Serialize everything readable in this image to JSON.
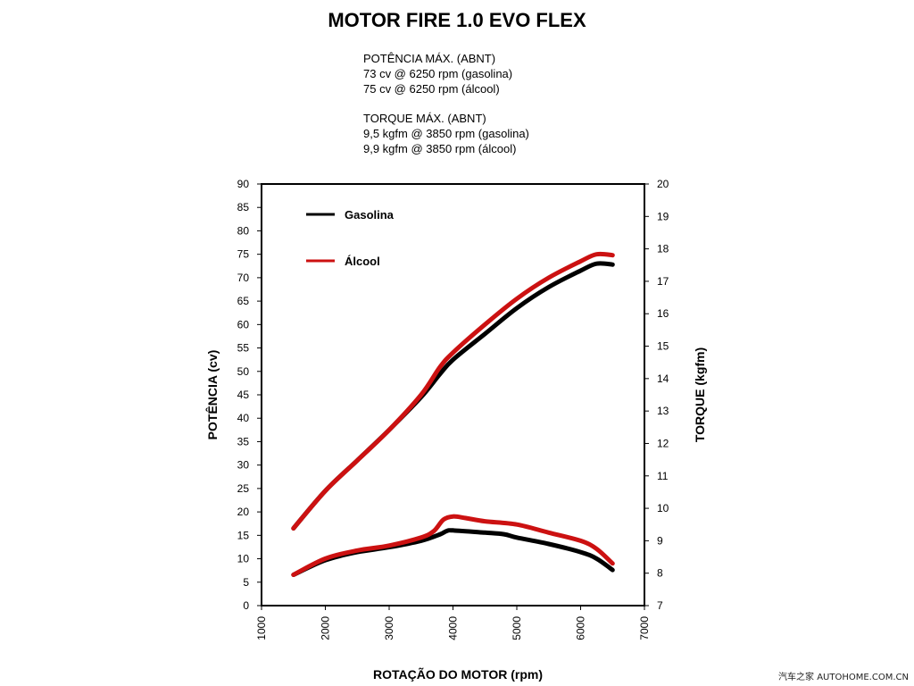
{
  "title": "MOTOR FIRE 1.0 EVO FLEX",
  "specs": {
    "power_heading": "POTÊNCIA MÁX. (ABNT)",
    "power_gas": "73 cv @ 6250 rpm (gasolina)",
    "power_alc": "75 cv @ 6250 rpm (álcool)",
    "torque_heading": "TORQUE MÁX. (ABNT)",
    "torque_gas": "9,5 kgfm @ 3850 rpm (gasolina)",
    "torque_alc": "9,9 kgfm @ 3850 rpm (álcool)"
  },
  "watermark": "汽车之家 AUTOHOME.COM.CN",
  "chart_data": {
    "type": "line",
    "title": "MOTOR FIRE 1.0 EVO FLEX",
    "xlabel": "ROTAÇÃO DO MOTOR (rpm)",
    "ylabel_left": "POTÊNCIA (cv)",
    "ylabel_right": "TORQUE (kgfm)",
    "xlim": [
      1000,
      7000
    ],
    "ylim_left": [
      0,
      90
    ],
    "ylim_right": [
      7,
      20
    ],
    "x_ticks": [
      "1000",
      "2000",
      "3000",
      "4000",
      "5000",
      "6000",
      "7000"
    ],
    "y_ticks_left": [
      "0",
      "5",
      "10",
      "15",
      "20",
      "25",
      "30",
      "35",
      "40",
      "45",
      "50",
      "55",
      "60",
      "65",
      "70",
      "75",
      "80",
      "85",
      "90"
    ],
    "y_ticks_right": [
      "7",
      "8",
      "9",
      "10",
      "11",
      "12",
      "13",
      "14",
      "15",
      "16",
      "17",
      "18",
      "19",
      "20"
    ],
    "legend": {
      "placement": "top-left",
      "entries": [
        "Gasolina",
        "Álcool"
      ]
    },
    "colors": {
      "gasolina": "#000000",
      "alcool": "#cc1111"
    },
    "series": [
      {
        "name": "Gasolina",
        "axis": "left",
        "color": "#000000",
        "x": [
          1500,
          2000,
          2500,
          3000,
          3500,
          3800,
          4000,
          4500,
          5000,
          5500,
          6000,
          6250,
          6500
        ],
        "values": [
          16.5,
          24.5,
          31,
          37.5,
          44.5,
          49.5,
          52.5,
          58,
          63.5,
          68,
          71.5,
          73,
          72.8
        ]
      },
      {
        "name": "Álcool",
        "axis": "left",
        "color": "#cc1111",
        "x": [
          1500,
          2000,
          2500,
          3000,
          3500,
          3800,
          4000,
          4500,
          5000,
          5500,
          6000,
          6250,
          6500
        ],
        "values": [
          16.5,
          24.5,
          31,
          37.5,
          45,
          51,
          54,
          60,
          65.5,
          70,
          73.5,
          75,
          74.8
        ]
      },
      {
        "name": "Gasolina",
        "axis": "right",
        "color": "#000000",
        "x": [
          1500,
          2000,
          2500,
          3000,
          3500,
          3800,
          3900,
          4000,
          4500,
          4800,
          5000,
          5500,
          6000,
          6250,
          6500
        ],
        "values": [
          7.95,
          8.4,
          8.65,
          8.8,
          9.0,
          9.2,
          9.3,
          9.32,
          9.25,
          9.2,
          9.1,
          8.9,
          8.65,
          8.45,
          8.1
        ]
      },
      {
        "name": "Álcool",
        "axis": "right",
        "color": "#cc1111",
        "x": [
          1500,
          2000,
          2500,
          3000,
          3500,
          3700,
          3850,
          4000,
          4200,
          4500,
          5000,
          5500,
          6000,
          6250,
          6500
        ],
        "values": [
          7.95,
          8.45,
          8.7,
          8.85,
          9.1,
          9.3,
          9.65,
          9.75,
          9.7,
          9.6,
          9.5,
          9.25,
          9.0,
          8.75,
          8.3
        ]
      }
    ]
  }
}
